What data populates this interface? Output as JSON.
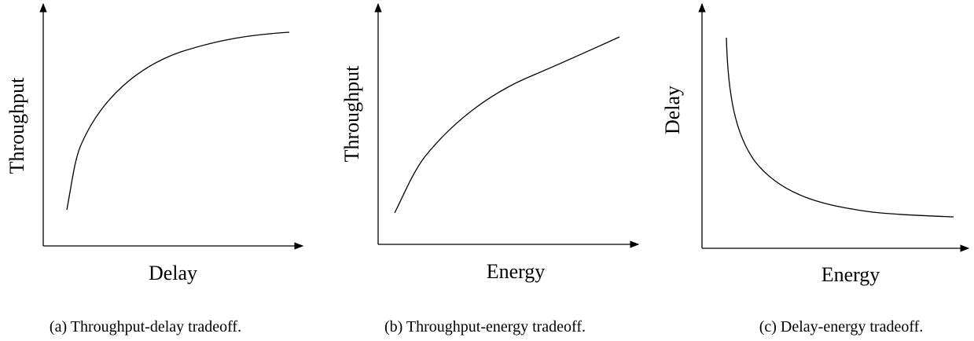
{
  "panels": [
    {
      "y_label": "Throughput",
      "x_label": "Delay",
      "caption": "(a) Throughput-delay tradeoff."
    },
    {
      "y_label": "Throughput",
      "x_label": "Energy",
      "caption": "(b) Throughput-energy tradeoff."
    },
    {
      "y_label": "Delay",
      "x_label": "Energy",
      "caption": "(c) Delay-energy tradeoff."
    }
  ]
}
